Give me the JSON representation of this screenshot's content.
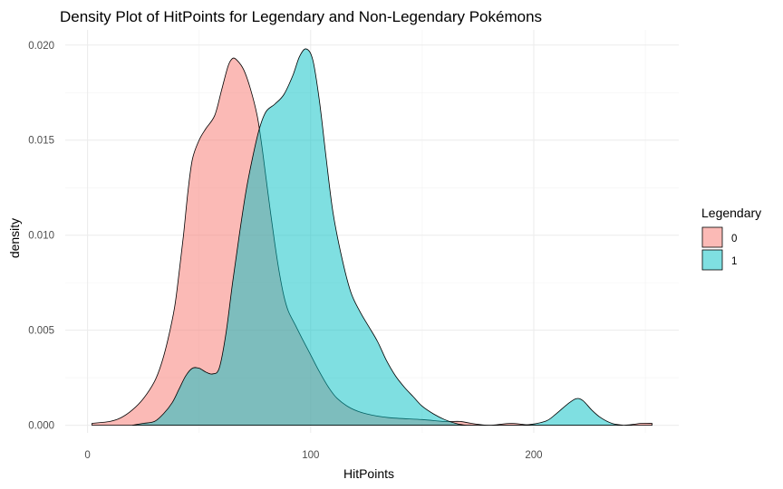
{
  "chart_data": {
    "type": "area",
    "title": "Density Plot of HitPoints for Legendary and Non-Legendary Pokémons",
    "xlabel": "HitPoints",
    "ylabel": "density",
    "xlim": [
      -10,
      265
    ],
    "ylim": [
      -0.0004,
      0.0208
    ],
    "x_ticks": [
      0,
      100,
      200
    ],
    "y_ticks": [
      0.0,
      0.005,
      0.01,
      0.015,
      0.02
    ],
    "x_tick_labels": [
      "0",
      "100",
      "200"
    ],
    "y_tick_labels": [
      "0.000",
      "0.005",
      "0.010",
      "0.015",
      "0.020"
    ],
    "grid": true,
    "legend": {
      "title": "Legendary",
      "position": "right",
      "entries": [
        "0",
        "1"
      ]
    },
    "series": [
      {
        "name": "0",
        "color": "#F8766D",
        "points": [
          [
            2,
            0.0001
          ],
          [
            10,
            0.0002
          ],
          [
            15,
            0.0004
          ],
          [
            20,
            0.0008
          ],
          [
            25,
            0.0014
          ],
          [
            30,
            0.0023
          ],
          [
            33,
            0.0032
          ],
          [
            36,
            0.0045
          ],
          [
            39,
            0.0062
          ],
          [
            41,
            0.008
          ],
          [
            43,
            0.01
          ],
          [
            45,
            0.0123
          ],
          [
            47,
            0.014
          ],
          [
            50,
            0.015
          ],
          [
            53,
            0.0156
          ],
          [
            57,
            0.0163
          ],
          [
            60,
            0.0176
          ],
          [
            63,
            0.0189
          ],
          [
            65,
            0.0193
          ],
          [
            67,
            0.0192
          ],
          [
            70,
            0.0187
          ],
          [
            73,
            0.0177
          ],
          [
            76,
            0.0163
          ],
          [
            78,
            0.0148
          ],
          [
            80,
            0.013
          ],
          [
            82,
            0.0112
          ],
          [
            84,
            0.0095
          ],
          [
            86,
            0.008
          ],
          [
            88,
            0.0068
          ],
          [
            90,
            0.006
          ],
          [
            93,
            0.0053
          ],
          [
            96,
            0.0046
          ],
          [
            100,
            0.0037
          ],
          [
            104,
            0.0028
          ],
          [
            108,
            0.002
          ],
          [
            112,
            0.0014
          ],
          [
            118,
            0.0009
          ],
          [
            125,
            0.0006
          ],
          [
            135,
            0.0004
          ],
          [
            150,
            0.0003
          ],
          [
            160,
            0.0002
          ],
          [
            167,
            0.0002
          ],
          [
            172,
            0.0001
          ],
          [
            180,
            0.0
          ],
          [
            190,
            0.0001
          ],
          [
            200,
            0.0
          ],
          [
            220,
            0.0
          ],
          [
            240,
            0.0
          ],
          [
            248,
            0.0001
          ],
          [
            253,
            0.0001
          ]
        ]
      },
      {
        "name": "1",
        "color": "#00BFC4",
        "points": [
          [
            20,
            0.0
          ],
          [
            25,
            0.0001
          ],
          [
            30,
            0.0002
          ],
          [
            34,
            0.0006
          ],
          [
            38,
            0.0012
          ],
          [
            41,
            0.0019
          ],
          [
            44,
            0.0026
          ],
          [
            47,
            0.003
          ],
          [
            50,
            0.003
          ],
          [
            53,
            0.0028
          ],
          [
            56,
            0.0027
          ],
          [
            59,
            0.003
          ],
          [
            62,
            0.0048
          ],
          [
            65,
            0.0075
          ],
          [
            68,
            0.01
          ],
          [
            71,
            0.0123
          ],
          [
            74,
            0.0141
          ],
          [
            77,
            0.0156
          ],
          [
            80,
            0.0165
          ],
          [
            84,
            0.0169
          ],
          [
            88,
            0.0174
          ],
          [
            92,
            0.0184
          ],
          [
            95,
            0.0194
          ],
          [
            98,
            0.0198
          ],
          [
            101,
            0.0192
          ],
          [
            104,
            0.017
          ],
          [
            107,
            0.014
          ],
          [
            110,
            0.0112
          ],
          [
            114,
            0.0088
          ],
          [
            118,
            0.007
          ],
          [
            122,
            0.006
          ],
          [
            126,
            0.0052
          ],
          [
            130,
            0.0044
          ],
          [
            134,
            0.0034
          ],
          [
            138,
            0.0026
          ],
          [
            142,
            0.002
          ],
          [
            146,
            0.0015
          ],
          [
            150,
            0.001
          ],
          [
            155,
            0.0006
          ],
          [
            160,
            0.0003
          ],
          [
            165,
            0.0001
          ],
          [
            170,
            0.0
          ],
          [
            180,
            0.0
          ],
          [
            195,
            0.0
          ],
          [
            205,
            0.0002
          ],
          [
            210,
            0.0006
          ],
          [
            215,
            0.0011
          ],
          [
            219,
            0.0014
          ],
          [
            222,
            0.0013
          ],
          [
            226,
            0.0008
          ],
          [
            230,
            0.0004
          ],
          [
            235,
            0.0001
          ],
          [
            240,
            0.0
          ]
        ]
      }
    ]
  }
}
